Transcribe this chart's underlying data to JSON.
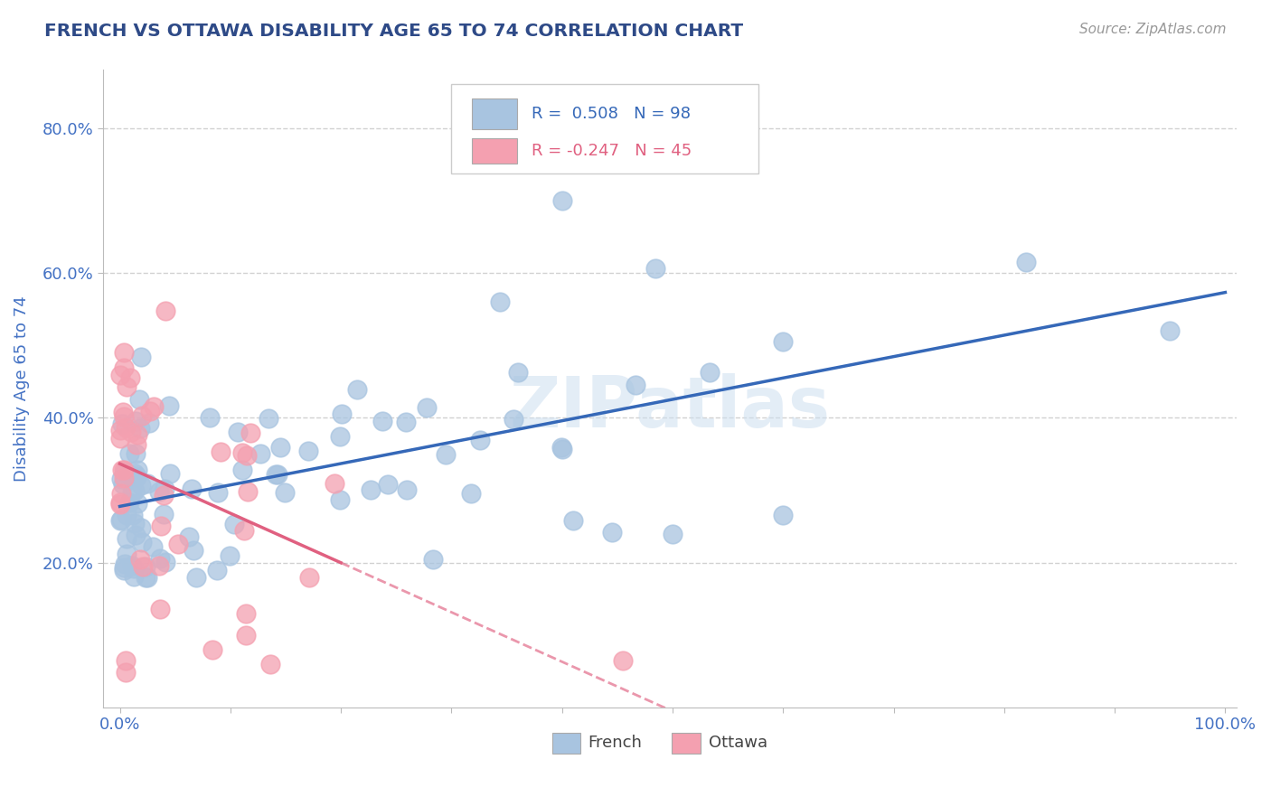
{
  "title": "FRENCH VS OTTAWA DISABILITY AGE 65 TO 74 CORRELATION CHART",
  "source": "Source: ZipAtlas.com",
  "ylabel": "Disability Age 65 to 74",
  "yticks": [
    20.0,
    40.0,
    60.0,
    80.0
  ],
  "french_r": 0.508,
  "french_n": 98,
  "ottawa_r": -0.247,
  "ottawa_n": 45,
  "french_color": "#a8c4e0",
  "ottawa_color": "#f4a0b0",
  "french_line_color": "#3568b8",
  "ottawa_line_color": "#e06080",
  "title_color": "#2e4a87",
  "axis_color": "#4472c4",
  "watermark": "ZIPatlas",
  "seed": 12345
}
